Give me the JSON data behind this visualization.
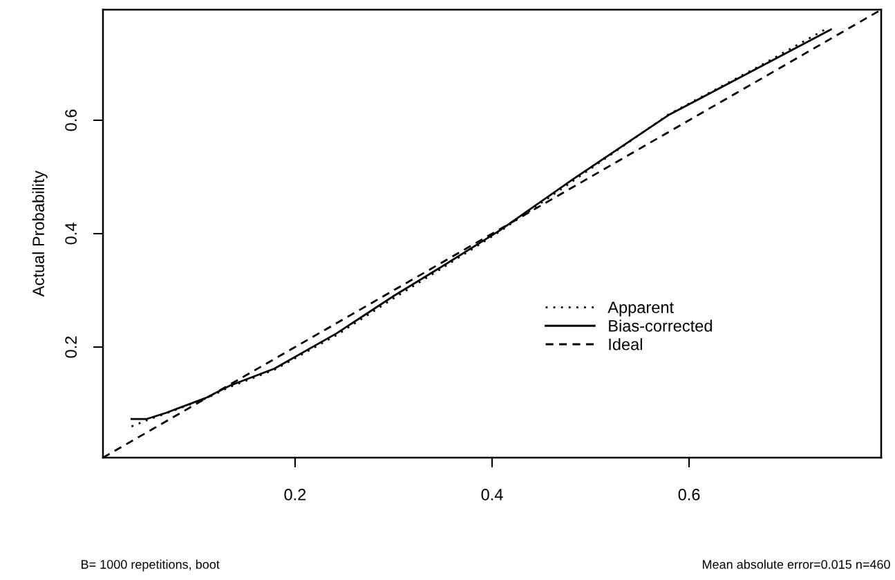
{
  "chart_data": {
    "type": "line",
    "ylabel": "Actual Probability",
    "xlim": [
      0.005,
      0.795
    ],
    "ylim": [
      0.005,
      0.795
    ],
    "xticks": [
      0.2,
      0.4,
      0.6
    ],
    "yticks": [
      0.2,
      0.4,
      0.6
    ],
    "grid": false,
    "legend": "bottom right",
    "marker": "none",
    "series": [
      {
        "name": "Apparent",
        "color": "#000000",
        "line_style": "dotted",
        "x": [
          0.034,
          0.048,
          0.069,
          0.109,
          0.134,
          0.179,
          0.242,
          0.3,
          0.35,
          0.408,
          0.483,
          0.579,
          0.672,
          0.741
        ],
        "values": [
          0.06,
          0.07,
          0.083,
          0.109,
          0.13,
          0.16,
          0.221,
          0.286,
          0.34,
          0.404,
          0.494,
          0.61,
          0.696,
          0.763
        ]
      },
      {
        "name": "Bias-corrected",
        "color": "#000000",
        "line_style": "solid",
        "x": [
          0.034,
          0.049,
          0.069,
          0.109,
          0.134,
          0.179,
          0.242,
          0.3,
          0.35,
          0.408,
          0.483,
          0.579,
          0.672,
          0.744
        ],
        "values": [
          0.073,
          0.073,
          0.084,
          0.11,
          0.132,
          0.162,
          0.224,
          0.29,
          0.343,
          0.406,
          0.497,
          0.609,
          0.694,
          0.76
        ]
      },
      {
        "name": "Ideal",
        "color": "#000000",
        "line_style": "dashed",
        "x": [
          0.005,
          0.795
        ],
        "values": [
          0.005,
          0.795
        ]
      }
    ],
    "annotations": [
      "B= 1000 repetitions, boot",
      "Mean absolute error=0.015 n=460"
    ]
  }
}
